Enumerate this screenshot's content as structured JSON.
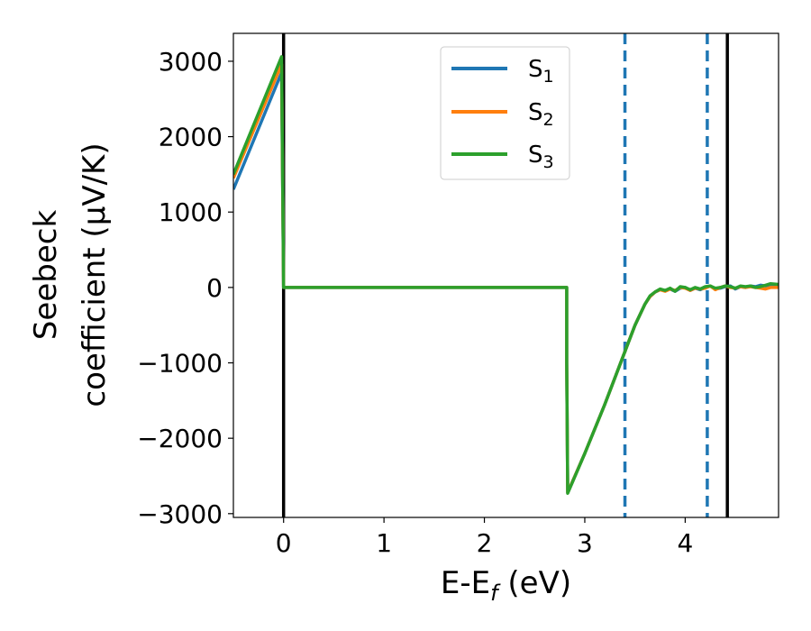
{
  "chart_data": {
    "type": "line",
    "xlabel": "E-E",
    "xlabel_sub": "f",
    "xlabel_unit": " (eV)",
    "ylabel_line1": "Seebeck",
    "ylabel_line2": "coefficient  (μV/K)",
    "xlim": [
      -0.5,
      4.93
    ],
    "ylim": [
      -3050,
      3370
    ],
    "xticks": [
      0,
      1,
      2,
      3,
      4
    ],
    "xtick_labels": [
      "0",
      "1",
      "2",
      "3",
      "4"
    ],
    "yticks": [
      3000,
      2000,
      1000,
      0,
      -1000,
      -2000,
      -3000
    ],
    "ytick_labels": [
      "3000",
      "2000",
      "1000",
      "0",
      "−1000",
      "−2000",
      "−3000"
    ],
    "legend_position": "top-center",
    "vertical_lines": [
      {
        "x": 0.0,
        "style": "solid",
        "color": "#000000"
      },
      {
        "x": 3.4,
        "style": "dashed",
        "color": "#1f77b4"
      },
      {
        "x": 4.22,
        "style": "dashed",
        "color": "#1f77b4"
      },
      {
        "x": 4.42,
        "style": "solid",
        "color": "#000000"
      }
    ],
    "series": [
      {
        "name": "S",
        "sub": "1",
        "color": "#1f77b4",
        "x": [
          -0.5,
          -0.02,
          -0.02,
          0.0,
          2.82,
          2.82,
          2.83,
          3.0,
          3.2,
          3.4,
          3.5,
          3.6,
          3.65,
          3.7,
          3.75,
          3.8,
          3.85,
          3.9,
          3.95,
          4.0,
          4.05,
          4.1,
          4.15,
          4.2,
          4.25,
          4.3,
          4.35,
          4.4,
          4.45,
          4.5,
          4.55,
          4.6,
          4.65,
          4.7,
          4.75,
          4.8,
          4.85,
          4.93
        ],
        "y": [
          1300,
          2850,
          2850,
          0,
          0,
          -1000,
          -2720,
          -2200,
          -1550,
          -850,
          -500,
          -220,
          -120,
          -60,
          -30,
          -40,
          -20,
          -50,
          -10,
          0,
          -40,
          -10,
          -30,
          0,
          20,
          -20,
          -10,
          10,
          20,
          -20,
          10,
          0,
          20,
          10,
          30,
          20,
          10,
          30
        ]
      },
      {
        "name": "S",
        "sub": "2",
        "color": "#ff7f0e",
        "x": [
          -0.5,
          -0.02,
          -0.02,
          0.0,
          2.82,
          2.82,
          2.83,
          3.0,
          3.2,
          3.4,
          3.5,
          3.6,
          3.65,
          3.7,
          3.75,
          3.8,
          3.85,
          3.9,
          3.95,
          4.0,
          4.05,
          4.1,
          4.15,
          4.2,
          4.25,
          4.3,
          4.35,
          4.4,
          4.45,
          4.5,
          4.55,
          4.6,
          4.65,
          4.7,
          4.75,
          4.8,
          4.85,
          4.93
        ],
        "y": [
          1450,
          2960,
          2960,
          0,
          0,
          -1000,
          -2720,
          -2200,
          -1550,
          -850,
          -500,
          -220,
          -120,
          -60,
          -30,
          -50,
          -20,
          -40,
          0,
          -10,
          -40,
          -10,
          -20,
          -10,
          20,
          -30,
          0,
          20,
          0,
          -10,
          10,
          0,
          10,
          0,
          -10,
          -20,
          0,
          0
        ]
      },
      {
        "name": "S",
        "sub": "3",
        "color": "#2ca02c",
        "x": [
          -0.5,
          -0.02,
          -0.02,
          0.0,
          2.82,
          2.82,
          2.83,
          3.0,
          3.2,
          3.4,
          3.5,
          3.6,
          3.65,
          3.7,
          3.75,
          3.8,
          3.85,
          3.9,
          3.95,
          4.0,
          4.05,
          4.1,
          4.15,
          4.2,
          4.25,
          4.3,
          4.35,
          4.4,
          4.45,
          4.5,
          4.55,
          4.6,
          4.65,
          4.7,
          4.75,
          4.8,
          4.85,
          4.93
        ],
        "y": [
          1500,
          3060,
          3060,
          0,
          0,
          -1000,
          -2730,
          -2200,
          -1550,
          -850,
          -500,
          -220,
          -110,
          -60,
          -20,
          -40,
          -10,
          -50,
          10,
          0,
          -30,
          0,
          -20,
          10,
          20,
          -10,
          0,
          20,
          10,
          -10,
          20,
          10,
          20,
          0,
          10,
          30,
          50,
          40
        ]
      }
    ]
  }
}
